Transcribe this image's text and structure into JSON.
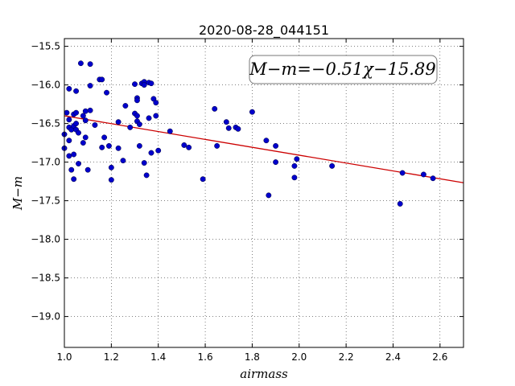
{
  "chart_data": {
    "type": "scatter",
    "title": "2020-08-28_044151",
    "xlabel": "airmass",
    "ylabel": "M−m",
    "xlim": [
      1.0,
      2.7
    ],
    "ylim": [
      -19.4,
      -15.4
    ],
    "y_inverted": true,
    "grid": true,
    "xticks": [
      1.0,
      1.2,
      1.4,
      1.6,
      1.8,
      2.0,
      2.2,
      2.4,
      2.6
    ],
    "xtick_labels": [
      "1.0",
      "1.2",
      "1.4",
      "1.6",
      "1.8",
      "2.0",
      "2.2",
      "2.4",
      "2.6"
    ],
    "yticks": [
      -15.5,
      -16.0,
      -16.5,
      -17.0,
      -17.5,
      -18.0,
      -18.5,
      -19.0
    ],
    "ytick_labels": [
      "−15.5",
      "−16.0",
      "−16.5",
      "−17.0",
      "−17.5",
      "−18.0",
      "−18.5",
      "−19.0"
    ],
    "annotation": "M−m=−0.51χ−15.89",
    "fit": {
      "slope": -0.51,
      "intercept": -15.89,
      "x_range": [
        1.0,
        2.7
      ],
      "color": "#cc0000"
    },
    "point_color": "#0000cc",
    "points": [
      [
        1.0,
        -16.82
      ],
      [
        1.0,
        -16.64
      ],
      [
        1.01,
        -16.36
      ],
      [
        1.02,
        -16.05
      ],
      [
        1.02,
        -16.45
      ],
      [
        1.02,
        -16.55
      ],
      [
        1.02,
        -16.72
      ],
      [
        1.02,
        -16.92
      ],
      [
        1.03,
        -16.58
      ],
      [
        1.03,
        -17.1
      ],
      [
        1.04,
        -16.53
      ],
      [
        1.04,
        -16.38
      ],
      [
        1.04,
        -16.9
      ],
      [
        1.04,
        -17.22
      ],
      [
        1.05,
        -16.08
      ],
      [
        1.05,
        -16.5
      ],
      [
        1.05,
        -16.36
      ],
      [
        1.05,
        -16.58
      ],
      [
        1.06,
        -16.62
      ],
      [
        1.06,
        -17.02
      ],
      [
        1.07,
        -15.72
      ],
      [
        1.08,
        -16.4
      ],
      [
        1.08,
        -16.75
      ],
      [
        1.09,
        -16.46
      ],
      [
        1.09,
        -16.34
      ],
      [
        1.09,
        -16.68
      ],
      [
        1.1,
        -17.1
      ],
      [
        1.11,
        -15.73
      ],
      [
        1.11,
        -16.33
      ],
      [
        1.11,
        -16.01
      ],
      [
        1.13,
        -16.52
      ],
      [
        1.15,
        -15.93
      ],
      [
        1.16,
        -15.93
      ],
      [
        1.16,
        -16.81
      ],
      [
        1.17,
        -16.68
      ],
      [
        1.18,
        -16.1
      ],
      [
        1.19,
        -16.79
      ],
      [
        1.2,
        -17.07
      ],
      [
        1.2,
        -17.23
      ],
      [
        1.23,
        -16.48
      ],
      [
        1.23,
        -16.82
      ],
      [
        1.25,
        -16.98
      ],
      [
        1.26,
        -16.27
      ],
      [
        1.28,
        -16.55
      ],
      [
        1.3,
        -15.99
      ],
      [
        1.3,
        -16.37
      ],
      [
        1.31,
        -16.4
      ],
      [
        1.31,
        -16.47
      ],
      [
        1.31,
        -16.17
      ],
      [
        1.31,
        -16.2
      ],
      [
        1.32,
        -16.51
      ],
      [
        1.32,
        -16.79
      ],
      [
        1.33,
        -15.98
      ],
      [
        1.34,
        -15.96
      ],
      [
        1.34,
        -16.0
      ],
      [
        1.34,
        -17.01
      ],
      [
        1.35,
        -17.17
      ],
      [
        1.36,
        -16.43
      ],
      [
        1.36,
        -15.97
      ],
      [
        1.37,
        -15.98
      ],
      [
        1.37,
        -16.88
      ],
      [
        1.38,
        -16.18
      ],
      [
        1.39,
        -16.23
      ],
      [
        1.39,
        -16.4
      ],
      [
        1.4,
        -16.85
      ],
      [
        1.45,
        -16.6
      ],
      [
        1.51,
        -16.78
      ],
      [
        1.53,
        -16.81
      ],
      [
        1.59,
        -17.22
      ],
      [
        1.64,
        -16.31
      ],
      [
        1.65,
        -16.79
      ],
      [
        1.69,
        -16.48
      ],
      [
        1.7,
        -16.56
      ],
      [
        1.73,
        -16.55
      ],
      [
        1.74,
        -16.57
      ],
      [
        1.8,
        -16.35
      ],
      [
        1.86,
        -16.72
      ],
      [
        1.87,
        -17.43
      ],
      [
        1.9,
        -16.79
      ],
      [
        1.9,
        -17.0
      ],
      [
        1.98,
        -17.05
      ],
      [
        1.98,
        -17.2
      ],
      [
        1.99,
        -16.96
      ],
      [
        2.14,
        -17.05
      ],
      [
        2.43,
        -17.54
      ],
      [
        2.44,
        -17.14
      ],
      [
        2.53,
        -17.16
      ],
      [
        2.57,
        -17.21
      ]
    ]
  }
}
